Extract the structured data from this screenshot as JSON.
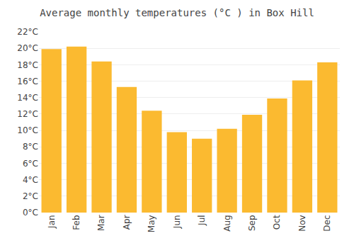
{
  "chart_data": {
    "type": "bar",
    "title": "Average monthly temperatures (°C ) in Box Hill",
    "categories": [
      "Jan",
      "Feb",
      "Mar",
      "Apr",
      "May",
      "Jun",
      "Jul",
      "Aug",
      "Sep",
      "Oct",
      "Nov",
      "Dec"
    ],
    "values": [
      19.9,
      20.2,
      18.4,
      15.3,
      12.4,
      9.8,
      9.0,
      10.2,
      11.9,
      13.9,
      16.1,
      18.3
    ],
    "color": "#FBBA30",
    "ylim": [
      0,
      22
    ],
    "yticks": [
      {
        "value": 0,
        "label": "0°C"
      },
      {
        "value": 2,
        "label": "2°C"
      },
      {
        "value": 4,
        "label": "4°C"
      },
      {
        "value": 6,
        "label": "6°C"
      },
      {
        "value": 8,
        "label": "8°C"
      },
      {
        "value": 10,
        "label": "10°C"
      },
      {
        "value": 12,
        "label": "12°C"
      },
      {
        "value": 14,
        "label": "14°C"
      },
      {
        "value": 16,
        "label": "16°C"
      },
      {
        "value": 18,
        "label": "18°C"
      },
      {
        "value": 20,
        "label": "20°C"
      },
      {
        "value": 22,
        "label": "22°C"
      }
    ],
    "grid": true
  }
}
